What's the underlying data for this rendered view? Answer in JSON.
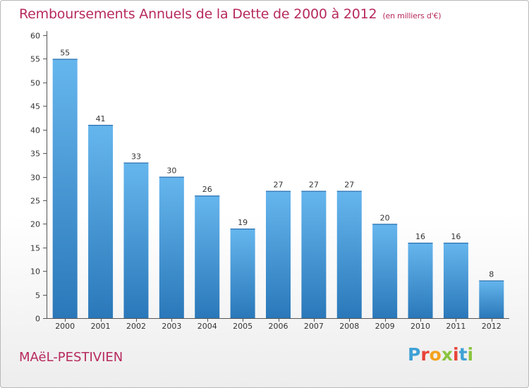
{
  "title": "Remboursements Annuels de la Dette de 2000 à 2012",
  "subtitle": "(en milliers d'€)",
  "place": "MAëL-PESTIVIEN",
  "brand": {
    "letters": [
      "P",
      "r",
      "o",
      "x",
      "i",
      "t",
      "i"
    ],
    "colors": [
      "#3fa1d6",
      "#e8443a",
      "#f4a21d",
      "#8bc43f",
      "#e8443a",
      "#3fa1d6",
      "#8bc43f"
    ]
  },
  "colors": {
    "bar": "#3d95d8",
    "bar_light": "#66b6ee",
    "bar_dark": "#2a78b9",
    "title": "#b72a5d"
  },
  "chart_data": {
    "type": "bar",
    "title": "Remboursements Annuels de la Dette de 2000 à 2012",
    "ylabel": "en milliers d'€",
    "xlabel": "",
    "categories": [
      "2000",
      "2001",
      "2002",
      "2003",
      "2004",
      "2005",
      "2006",
      "2007",
      "2008",
      "2009",
      "2010",
      "2011",
      "2012"
    ],
    "values": [
      55,
      41,
      33,
      30,
      26,
      19,
      27,
      27,
      27,
      20,
      16,
      16,
      8
    ],
    "ylim": [
      0,
      60
    ],
    "yticks": [
      0,
      5,
      10,
      15,
      20,
      25,
      30,
      35,
      40,
      45,
      50,
      55,
      60
    ],
    "grid": false
  }
}
